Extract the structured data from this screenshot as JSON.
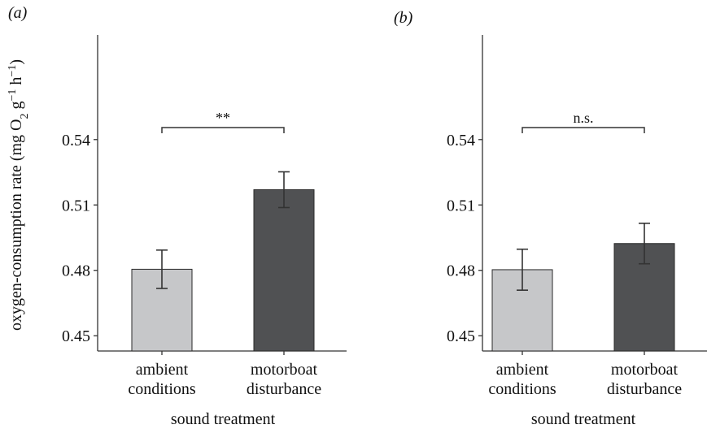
{
  "chart_data": [
    {
      "type": "bar",
      "panel_label": "(a)",
      "categories": [
        [
          "ambient",
          "conditions"
        ],
        [
          "motorboat",
          "disturbance"
        ]
      ],
      "values": [
        0.4805,
        0.517
      ],
      "error": [
        0.0088,
        0.0082
      ],
      "colors": [
        "#c6c7c9",
        "#505153"
      ],
      "ylim": [
        0.443,
        0.588
      ],
      "yticks": [
        "0.45",
        "0.48",
        "0.51",
        "0.54"
      ],
      "xlabel": "sound treatment",
      "ylabel": "oxygen-consumption rate (mg O2 g−1 h−1)",
      "significance": {
        "label": "**",
        "y": 0.5455
      },
      "grid": false
    },
    {
      "type": "bar",
      "panel_label": "(b)",
      "categories": [
        [
          "ambient",
          "conditions"
        ],
        [
          "motorboat",
          "disturbance"
        ]
      ],
      "values": [
        0.4803,
        0.4923
      ],
      "error": [
        0.0094,
        0.0093
      ],
      "colors": [
        "#c6c7c9",
        "#505153"
      ],
      "ylim": [
        0.443,
        0.588
      ],
      "yticks": [
        "0.45",
        "0.48",
        "0.51",
        "0.54"
      ],
      "xlabel": "sound treatment",
      "ylabel": "",
      "significance": {
        "label": "n.s.",
        "y": 0.5455
      },
      "grid": false
    }
  ]
}
